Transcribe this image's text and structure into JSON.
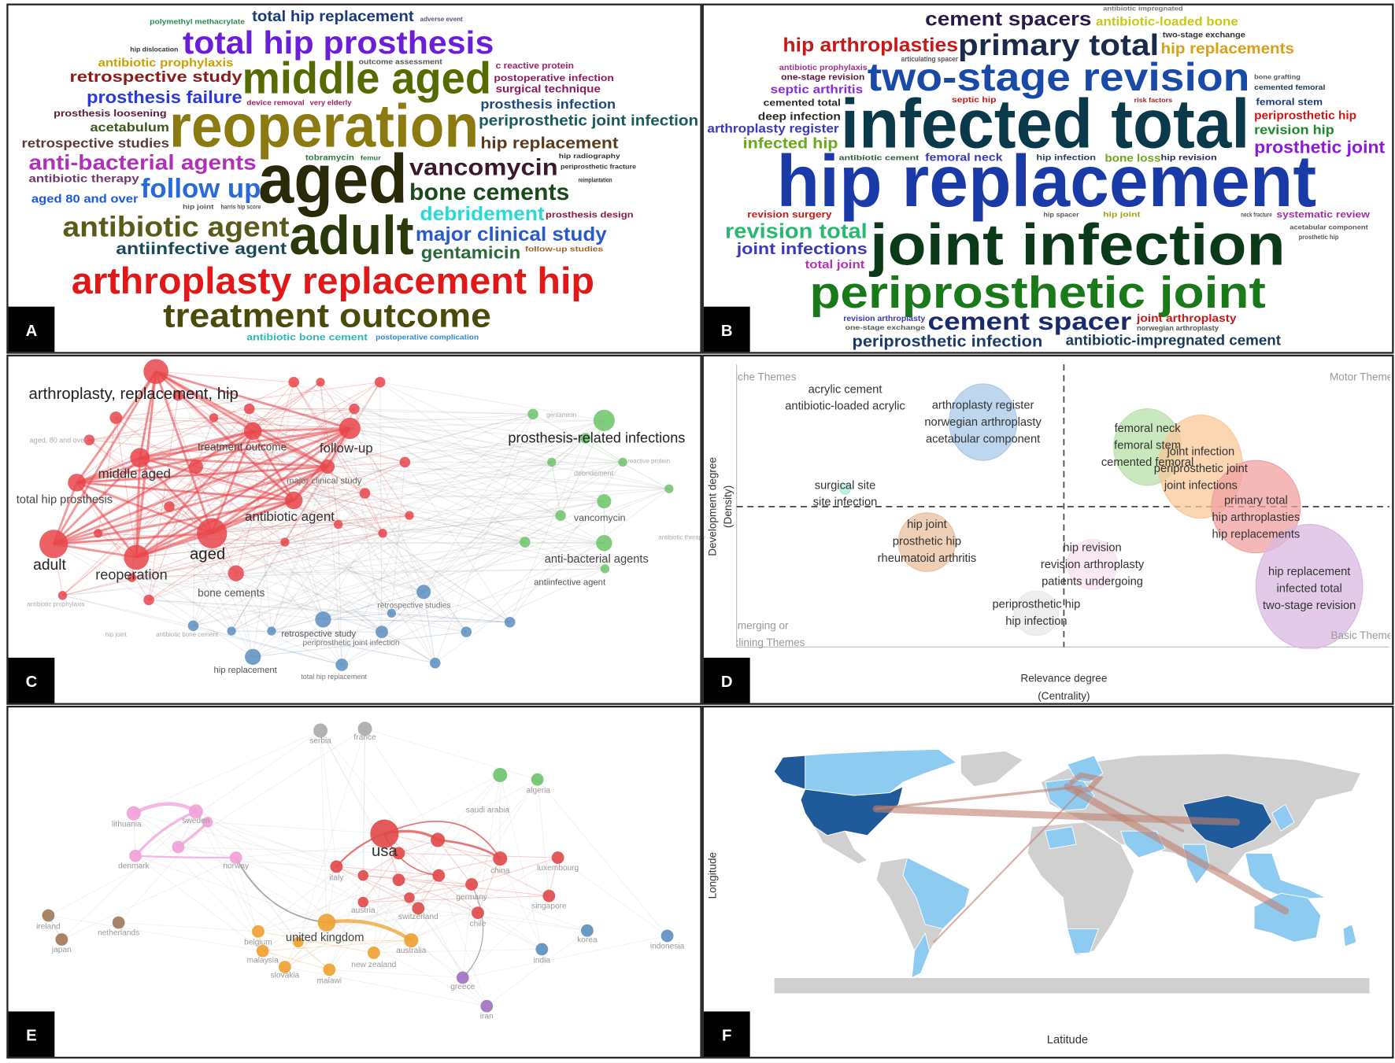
{
  "panel_letters": [
    "A",
    "B",
    "C",
    "D",
    "E",
    "F"
  ],
  "word_cloud_a": [
    "polymethyl methacrylate",
    "total hip replacement",
    "adverse event",
    "hip dislocation",
    "total hip prosthesis",
    "antibiotic prophylaxis",
    "outcome assessment",
    "c reactive protein",
    "retrospective study",
    "middle aged",
    "postoperative infection",
    "surgical technique",
    "prosthesis failure",
    "device removal",
    "very elderly",
    "prosthesis infection",
    "prosthesis loosening",
    "periprosthetic joint infection",
    "acetabulum",
    "reoperation",
    "retrospective studies",
    "hip replacement",
    "tobramycin",
    "femur",
    "hip radiography",
    "anti-bacterial agents",
    "periprosthetic fracture",
    "vancomycin",
    "antibiotic therapy",
    "reimplantation",
    "follow up",
    "aged",
    "bone cements",
    "aged 80 and over",
    "hip joint",
    "harris hip score",
    "debridement",
    "prosthesis design",
    "antibiotic agent",
    "major clinical study",
    "adult",
    "antiinfective agent",
    "follow-up studies",
    "gentamicin",
    "arthroplasty replacement hip",
    "treatment outcome",
    "antibiotic bone cement",
    "postoperative complication"
  ],
  "word_cloud_b": [
    "antibiotic impregnated",
    "cement spacers",
    "antibiotic-loaded bone",
    "two-stage exchange",
    "hip arthroplasties",
    "primary total",
    "hip replacements",
    "antibiotic prophylaxis",
    "articulating spacer",
    "one-stage revision",
    "two-stage revision",
    "bone grafting",
    "cemented femoral",
    "septic arthritis",
    "septic hip",
    "risk factors",
    "femoral stem",
    "cemented total",
    "deep infection",
    "periprosthetic hip",
    "infected total",
    "arthroplasty register",
    "revision hip",
    "infected hip",
    "prosthetic joint",
    "antibiotic cement",
    "femoral neck",
    "hip infection",
    "bone loss",
    "hip revision",
    "hip replacement",
    "revision surgery",
    "hip spacer",
    "hip joint",
    "neck fracture",
    "systematic review",
    "acetabular component",
    "revision total",
    "prosthetic hip",
    "joint infections",
    "joint infection",
    "total joint",
    "periprosthetic joint",
    "revision arthroplasty",
    "joint arthroplasty",
    "cement spacer",
    "one-stage exchange",
    "norwegian arthroplasty",
    "periprosthetic infection",
    "antibiotic-impregnated cement"
  ],
  "keyword_network_c": {
    "labels": [
      "arthroplasty, replacement, hip",
      "prosthesis-related infections",
      "treatment outcome",
      "follow-up",
      "middle aged",
      "total hip prosthesis",
      "major clinical study",
      "antibiotic agent",
      "vancomycin",
      "adult",
      "aged",
      "reoperation",
      "anti-bacterial agents",
      "antiinfective agent",
      "bone cements",
      "retrospective studies",
      "retrospective study",
      "periprosthetic joint infection",
      "hip replacement",
      "total hip replacement",
      "aged, 80 and over",
      "debridement",
      "c reactive protein",
      "antibiotic therapy",
      "antibiotic prophylaxis",
      "hip joint",
      "antibiotic bone cement",
      "gentamicin"
    ]
  },
  "thematic_map_d": {
    "quadrant_labels": [
      "Niche Themes",
      "Motor Themes",
      "Emerging or",
      "Declining Themes",
      "Basic Themes"
    ],
    "y_axis_label": [
      "Development degree",
      "(Density)"
    ],
    "x_axis_label": [
      "Relevance degree",
      "(Centrality)"
    ],
    "themes": [
      [
        "acrylic cement",
        "antibiotic-loaded acrylic"
      ],
      [
        "arthroplasty register",
        "norwegian arthroplasty",
        "acetabular component"
      ],
      [
        "surgical site",
        "site infection"
      ],
      [
        "femoral neck",
        "femoral stem",
        "cemented femoral"
      ],
      [
        "joint infection",
        "periprosthetic joint",
        "joint infections"
      ],
      [
        "primary total",
        "hip arthroplasties",
        "hip replacements"
      ],
      [
        "hip joint",
        "prosthetic hip",
        "rheumatoid arthritis"
      ],
      [
        "hip revision",
        "revision arthroplasty",
        "patients undergoing"
      ],
      [
        "periprosthetic hip",
        "hip infection"
      ],
      [
        "hip replacement",
        "infected total",
        "two-stage revision"
      ]
    ]
  },
  "country_network_e": {
    "labels": [
      "serbia",
      "france",
      "algeria",
      "saudi arabia",
      "lithuania",
      "sweden",
      "denmark",
      "norway",
      "usa",
      "italy",
      "china",
      "luxembourg",
      "germany",
      "austria",
      "switzerland",
      "singapore",
      "chile",
      "ireland",
      "netherlands",
      "japan",
      "united kingdom",
      "belgium",
      "australia",
      "korea",
      "indonesia",
      "malaysia",
      "new zealand",
      "india",
      "slovakia",
      "malawi",
      "greece",
      "iran"
    ]
  },
  "map_f": {
    "y_axis_label": "Longitude",
    "x_axis_label": "Latitude"
  }
}
